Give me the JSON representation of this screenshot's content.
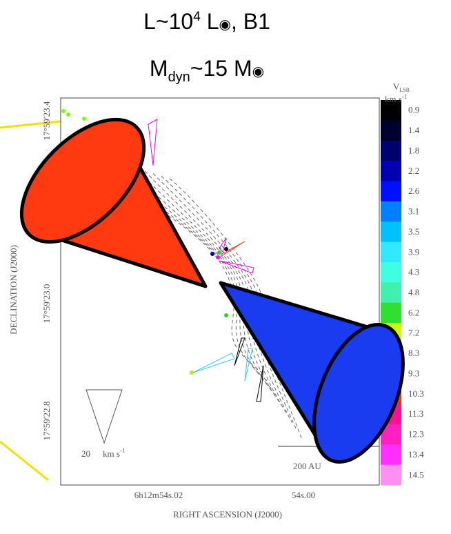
{
  "figure": {
    "title_line1": {
      "a": "L~10",
      "sup": "4",
      "b": " L",
      "sym": "◉",
      "c": ", B1"
    },
    "title_line2": {
      "a": "M",
      "sub": "dyn",
      "b": "~15 M",
      "sym": "◉"
    },
    "colorbar_title": {
      "v": "V",
      "sub": "LSR",
      "unit": "km s",
      "exp": "-1"
    },
    "colorbar": [
      {
        "label": "0.9",
        "color": "#000000"
      },
      {
        "label": "1.4",
        "color": "#00002e"
      },
      {
        "label": "1.8",
        "color": "#000070"
      },
      {
        "label": "2.2",
        "color": "#0000b0"
      },
      {
        "label": "2.6",
        "color": "#0010ff"
      },
      {
        "label": "3.1",
        "color": "#0080ff"
      },
      {
        "label": "3.5",
        "color": "#00c0ff"
      },
      {
        "label": "3.9",
        "color": "#30e8ff"
      },
      {
        "label": "4.3",
        "color": "#40ffe0"
      },
      {
        "label": "4.8",
        "color": "#40f0b0"
      },
      {
        "label": "6.2",
        "color": "#30e030"
      },
      {
        "label": "7.2",
        "color": "#c8ff00"
      },
      {
        "label": "8.3",
        "color": "#ffe000"
      },
      {
        "label": "9.3",
        "color": "#ff9000"
      },
      {
        "label": "10.3",
        "color": "#ff3000"
      },
      {
        "label": "11.3",
        "color": "#ff1090"
      },
      {
        "label": "12.3",
        "color": "#ff20c0"
      },
      {
        "label": "13.4",
        "color": "#ff30ff"
      },
      {
        "label": "14.5",
        "color": "#ff90f0"
      }
    ],
    "y_ticks": [
      "17°59′23.4",
      "17°59′23.0",
      "17°59′22.8"
    ],
    "y_label": "DECLINATION (J2000)",
    "x_ticks": [
      "6h12m54s.02",
      "54s.00"
    ],
    "x_label": "RIGHT ASCENSION (J2000)",
    "velocity_scale": {
      "num": "20",
      "unit": "km s",
      "exp": "-1"
    },
    "distance_scale": "200 AU"
  }
}
